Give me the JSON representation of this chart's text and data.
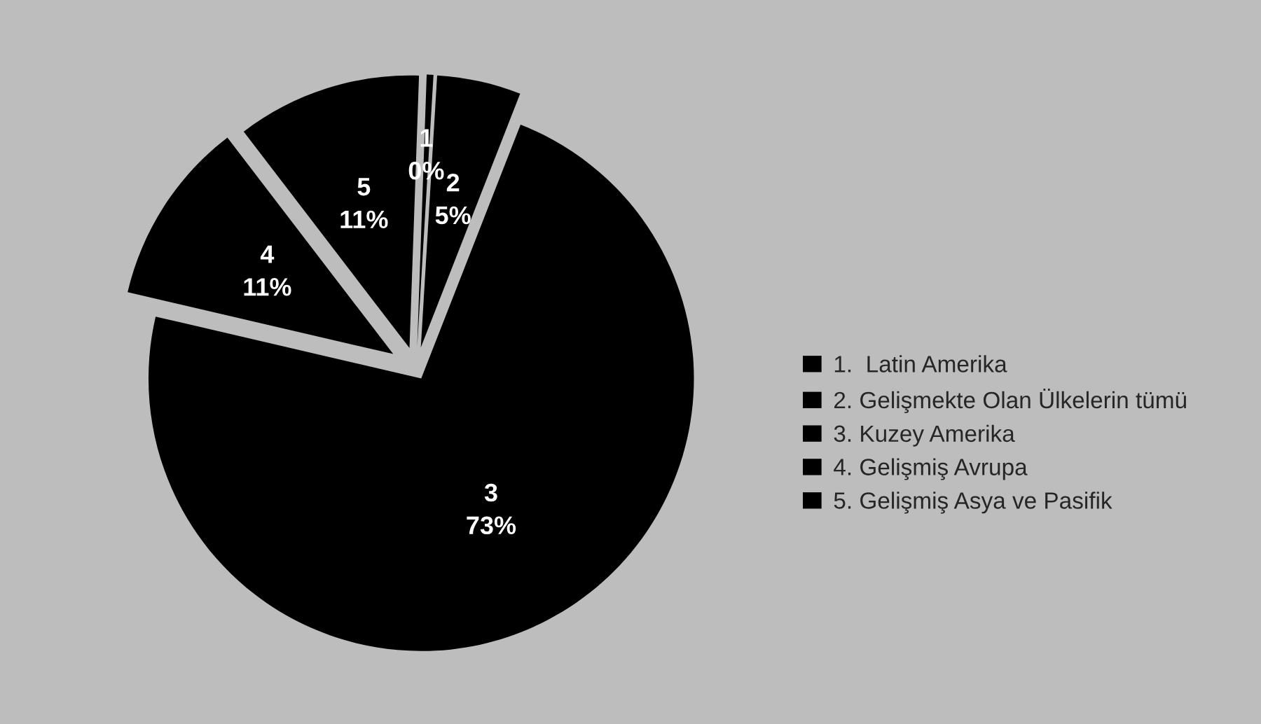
{
  "chart_data": {
    "type": "pie",
    "categories": [
      "1.  Latin Amerika",
      "2. Gelişmekte Olan Ülkelerin tümü",
      "3. Kuzey Amerika",
      "4. Gelişmiş Avrupa",
      "5. Gelişmiş Asya ve Pasifik"
    ],
    "values": [
      0.4,
      5,
      73,
      11,
      11
    ],
    "value_labels": [
      "1\n0%",
      "2\n5%",
      "3\n73%",
      "4\n11%",
      "5\n11%"
    ],
    "colors": [
      "#000000",
      "#000000",
      "#000000",
      "#000000",
      "#000000"
    ],
    "legend": "right"
  }
}
